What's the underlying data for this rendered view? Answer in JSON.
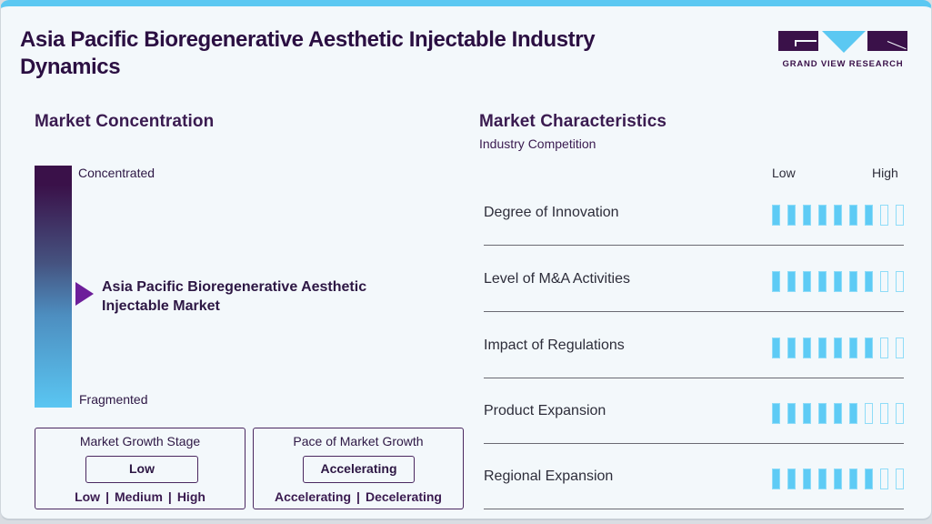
{
  "header": {
    "title": "Asia Pacific Bioregenerative Aesthetic Injectable Industry Dynamics",
    "logo_text": "GRAND VIEW RESEARCH"
  },
  "market_concentration": {
    "title": "Market Concentration",
    "top_label": "Concentrated",
    "bottom_label": "Fragmented",
    "market_name": "Asia Pacific Bioregenerative Aesthetic Injectable Market",
    "position_pct_from_top": 55
  },
  "growth_stage": {
    "title": "Market Growth Stage",
    "value": "Low",
    "options": [
      "Low",
      "Medium",
      "High"
    ]
  },
  "growth_pace": {
    "title": "Pace of Market Growth",
    "value": "Accelerating",
    "options": [
      "Accelerating",
      "Decelerating"
    ]
  },
  "market_characteristics": {
    "title": "Market Characteristics",
    "subtitle": "Industry Competition",
    "scale_low": "Low",
    "scale_high": "High",
    "max_score": 9,
    "rows": [
      {
        "label": "Degree of Innovation",
        "score": 7
      },
      {
        "label": "Level of M&A Activities",
        "score": 7
      },
      {
        "label": "Impact of Regulations",
        "score": 7
      },
      {
        "label": "Product Expansion",
        "score": 6
      },
      {
        "label": "Regional Expansion",
        "score": 7
      }
    ]
  },
  "colors": {
    "accent_blue": "#5bc8f2",
    "brand_purple": "#3a1149",
    "pointer_purple": "#6d1f9a"
  }
}
